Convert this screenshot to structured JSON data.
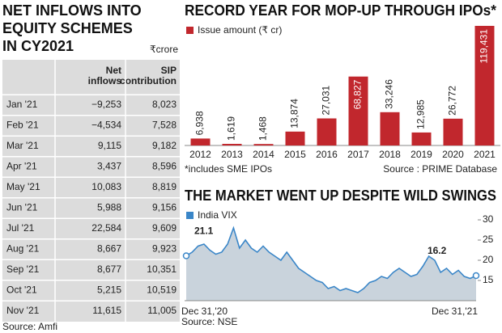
{
  "table": {
    "title": [
      "NET INFLOWS INTO",
      "EQUITY SCHEMES",
      "IN CY2021"
    ],
    "unit": "₹crore",
    "headers": [
      "Net inflows",
      "SIP contribution"
    ],
    "rows": [
      [
        "Jan '21",
        "−9,253",
        "8,023"
      ],
      [
        "Feb '21",
        "−4,534",
        "7,528"
      ],
      [
        "Mar '21",
        "9,115",
        "9,182"
      ],
      [
        "Apr '21",
        "3,437",
        "8,596"
      ],
      [
        "May '21",
        "10,083",
        "8,819"
      ],
      [
        "Jun '21",
        "5,988",
        "9,156"
      ],
      [
        "Jul '21",
        "22,584",
        "9,609"
      ],
      [
        "Aug '21",
        "8,667",
        "9,923"
      ],
      [
        "Sep '21",
        "8,677",
        "10,351"
      ],
      [
        "Oct '21",
        "5,215",
        "10,519"
      ],
      [
        "Nov '21",
        "11,615",
        "11,005"
      ]
    ],
    "source": "Source: Amfi"
  },
  "chart_data": [
    {
      "type": "bar",
      "title": "RECORD YEAR FOR MOP-UP THROUGH IPOs*",
      "categories": [
        "2012",
        "2013",
        "2014",
        "2015",
        "2016",
        "2017",
        "2018",
        "2019",
        "2020",
        "2021"
      ],
      "series": [
        {
          "name": "Issue amount (₹ cr)",
          "color": "#c1272d",
          "values": [
            6938,
            1619,
            1468,
            13874,
            27031,
            68827,
            33246,
            12985,
            26772,
            119431
          ],
          "value_labels": [
            "6,938",
            "1,619",
            "1,468",
            "13,874",
            "27,031",
            "68,827",
            "33,246",
            "12,985",
            "26,772",
            "119,431"
          ]
        }
      ],
      "footnote": "*includes SME IPOs",
      "source": "Source : PRIME Database"
    },
    {
      "type": "line",
      "title": "THE MARKET WENT UP DESPITE WILD SWINGS",
      "categories": [
        "Dec 31,'20",
        null,
        null,
        null,
        null,
        null,
        null,
        null,
        null,
        null,
        null,
        null,
        null,
        null,
        null,
        null,
        null,
        null,
        null,
        null,
        null,
        null,
        null,
        null,
        null,
        null,
        null,
        null,
        null,
        null,
        null,
        null,
        null,
        null,
        null,
        null,
        null,
        null,
        null,
        null,
        null,
        null,
        null,
        null,
        null,
        null,
        null,
        null,
        null,
        "Dec 31,'21"
      ],
      "series": [
        {
          "name": "India VIX",
          "color": "#3a86c8",
          "fill": "#c9d3dc",
          "values": [
            21.1,
            22,
            23.5,
            24,
            22.5,
            21.5,
            22,
            24,
            28,
            23,
            25,
            23,
            22,
            23.5,
            22,
            21,
            20,
            22,
            20,
            18,
            17,
            16,
            15,
            14.5,
            13,
            13.5,
            12.5,
            13,
            12.5,
            12,
            13,
            14.5,
            15,
            16,
            15.5,
            17,
            18,
            17,
            16,
            16.5,
            18.5,
            21,
            20,
            17,
            18,
            16.5,
            17.5,
            16,
            15.5,
            16.2
          ]
        }
      ],
      "ylim": [
        10,
        30
      ],
      "yticks": [
        15,
        20,
        25,
        30
      ],
      "source": "Source: NSE"
    }
  ]
}
